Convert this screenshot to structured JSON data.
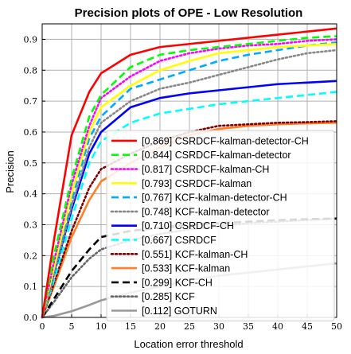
{
  "chart_data": {
    "type": "line",
    "title": "Precision plots of OPE - Low Resolution",
    "xlabel": "Location error threshold",
    "ylabel": "Precision",
    "xlim": [
      0,
      50
    ],
    "ylim": [
      0,
      0.95
    ],
    "xticks": [
      "0",
      "5",
      "10",
      "15",
      "20",
      "25",
      "30",
      "35",
      "40",
      "45",
      "50"
    ],
    "yticks": [
      "0.0",
      "0.1",
      "0.2",
      "0.3",
      "0.4",
      "0.5",
      "0.6",
      "0.7",
      "0.8",
      "0.9"
    ],
    "grid": true,
    "legend_position": "lower-right",
    "x": [
      0,
      2,
      5,
      8,
      10,
      15,
      20,
      25,
      30,
      35,
      40,
      45,
      50
    ],
    "series": [
      {
        "name": "[0.869] CSRDCF-kalman-detector-CH",
        "color": "#ff0000",
        "dash": "solid",
        "values": [
          0.0,
          0.25,
          0.59,
          0.73,
          0.79,
          0.85,
          0.875,
          0.885,
          0.895,
          0.905,
          0.915,
          0.925,
          0.935
        ]
      },
      {
        "name": "[0.844] CSRDCF-kalman-detector",
        "color": "#00ff00",
        "dash": "dashed",
        "values": [
          0.0,
          0.2,
          0.45,
          0.65,
          0.72,
          0.81,
          0.85,
          0.865,
          0.875,
          0.885,
          0.895,
          0.905,
          0.91
        ]
      },
      {
        "name": "[0.817] CSRDCF-kalman-CH",
        "color": "#ff00ff",
        "dash": "dotted",
        "values": [
          0.0,
          0.18,
          0.43,
          0.62,
          0.71,
          0.78,
          0.83,
          0.855,
          0.87,
          0.88,
          0.885,
          0.895,
          0.9
        ]
      },
      {
        "name": "[0.793] CSRDCF-kalman",
        "color": "#ffff00",
        "dash": "solid",
        "values": [
          0.0,
          0.16,
          0.4,
          0.6,
          0.68,
          0.75,
          0.8,
          0.83,
          0.855,
          0.865,
          0.875,
          0.88,
          0.885
        ]
      },
      {
        "name": "[0.767] KCF-kalman-detector-CH",
        "color": "#00aaff",
        "dash": "dashed",
        "values": [
          0.0,
          0.15,
          0.38,
          0.58,
          0.65,
          0.74,
          0.77,
          0.8,
          0.83,
          0.85,
          0.865,
          0.88,
          0.89
        ]
      },
      {
        "name": "[0.748] KCF-kalman-detector",
        "color": "#888888",
        "dash": "dotted",
        "values": [
          0.0,
          0.14,
          0.36,
          0.55,
          0.63,
          0.7,
          0.74,
          0.76,
          0.785,
          0.81,
          0.835,
          0.855,
          0.865
        ]
      },
      {
        "name": "[0.710] CSRDCF-CH",
        "color": "#0000ff",
        "dash": "solid",
        "values": [
          0.0,
          0.14,
          0.35,
          0.53,
          0.6,
          0.68,
          0.71,
          0.725,
          0.735,
          0.745,
          0.755,
          0.76,
          0.765
        ]
      },
      {
        "name": "[0.667] CSRDCF",
        "color": "#00ffff",
        "dash": "dashed",
        "values": [
          0.0,
          0.12,
          0.32,
          0.5,
          0.57,
          0.63,
          0.66,
          0.675,
          0.69,
          0.7,
          0.71,
          0.72,
          0.73
        ]
      },
      {
        "name": "[0.551] KCF-kalman-CH",
        "color": "#800000",
        "dash": "dotted",
        "values": [
          0.0,
          0.11,
          0.28,
          0.42,
          0.48,
          0.53,
          0.57,
          0.6,
          0.62,
          0.625,
          0.63,
          0.632,
          0.635
        ]
      },
      {
        "name": "[0.533] KCF-kalman",
        "color": "#ff7f27",
        "dash": "solid",
        "values": [
          0.0,
          0.1,
          0.26,
          0.38,
          0.44,
          0.5,
          0.55,
          0.59,
          0.61,
          0.62,
          0.625,
          0.628,
          0.63
        ]
      },
      {
        "name": "[0.299] KCF-CH",
        "color": "#000000",
        "dash": "dashed",
        "values": [
          0.0,
          0.06,
          0.15,
          0.22,
          0.26,
          0.28,
          0.29,
          0.3,
          0.305,
          0.31,
          0.315,
          0.318,
          0.32
        ]
      },
      {
        "name": "[0.285] KCF",
        "color": "#666666",
        "dash": "dotted",
        "values": [
          0.0,
          0.05,
          0.13,
          0.19,
          0.22,
          0.25,
          0.27,
          0.285,
          0.295,
          0.305,
          0.31,
          0.315,
          0.32
        ]
      },
      {
        "name": "[0.112] GOTURN",
        "color": "#999999",
        "dash": "solid",
        "values": [
          0.0,
          0.005,
          0.02,
          0.04,
          0.055,
          0.08,
          0.1,
          0.12,
          0.135,
          0.145,
          0.155,
          0.165,
          0.175
        ]
      }
    ]
  }
}
